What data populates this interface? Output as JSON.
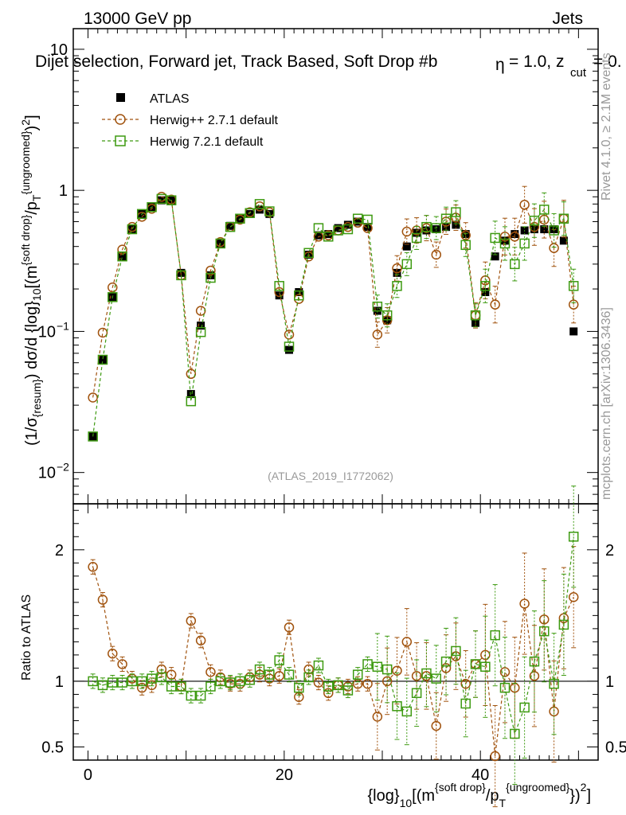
{
  "header": {
    "energy_label": "13000 GeV pp",
    "category_label": "Jets",
    "plot_title": "Dijet selection, Forward jet, Track Based, Soft Drop #b",
    "title_suffix": "= 1.0, z",
    "title_sub": "cut",
    "title_end": "= 0.",
    "beta_symbol": "η",
    "rivet_label": "Rivet 4.1.0, ≥ 2.1M events",
    "mcplots_label": "mcplots.cern.ch [arXiv:1306.3436]",
    "analysis_id": "(ATLAS_2019_I1772062)"
  },
  "axes": {
    "ylabel_main": "(1/σ{resum}) dσ/d {log}10[(msoft drop/pT{ungroomed})2]",
    "ylabel_ratio": "Ratio to ATLAS",
    "xlabel": "{log}10[(msoft drop/pT{ungroomed})2]",
    "main_ticks": [
      "10",
      "1",
      "10",
      "10"
    ],
    "main_tick_exponents": [
      "",
      "",
      "−1",
      "−2"
    ],
    "ratio_ticks": [
      "2",
      "1",
      "0.5"
    ],
    "ratio_ticks_right": [
      "2",
      "1",
      "0.5"
    ],
    "x_ticks": [
      "0",
      "20",
      "40"
    ]
  },
  "legend": {
    "atlas": "ATLAS",
    "herwigpp": "Herwig++ 2.7.1 default",
    "herwig7": "Herwig 7.2.1 default"
  },
  "colors": {
    "atlas": "#000000",
    "herwigpp": "#a0520d",
    "herwig7": "#3d9a10",
    "analysis_text": "#999999",
    "side_text": "#999999"
  },
  "chart_data": {
    "type": "scatter",
    "x": [
      0.5,
      1.5,
      2.5,
      3.5,
      4.5,
      5.5,
      6.5,
      7.5,
      8.5,
      9.5,
      10.5,
      11.5,
      12.5,
      13.5,
      14.5,
      15.5,
      16.5,
      17.5,
      18.5,
      19.5,
      20.5,
      21.5,
      22.5,
      23.5,
      24.5,
      25.5,
      26.5,
      27.5,
      28.5,
      29.5,
      30.5,
      31.5,
      32.5,
      33.5,
      34.5,
      35.5,
      36.5,
      37.5,
      38.5,
      39.5,
      40.5,
      41.5,
      42.5,
      43.5,
      44.5,
      45.5,
      46.5,
      47.5,
      48.5,
      49.5
    ],
    "xlim": [
      -1.5,
      52.0
    ],
    "main": {
      "yscale": "log",
      "ylim": [
        0.006,
        14
      ]
    },
    "ratio": {
      "ylim": [
        0.4,
        2.35
      ]
    },
    "series": [
      {
        "name": "ATLAS",
        "values": [
          0.018,
          0.063,
          0.175,
          0.34,
          0.53,
          0.68,
          0.76,
          0.85,
          0.85,
          0.26,
          0.036,
          0.11,
          0.25,
          0.42,
          0.56,
          0.63,
          0.68,
          0.73,
          0.68,
          0.18,
          0.074,
          0.19,
          0.35,
          0.48,
          0.49,
          0.54,
          0.57,
          0.6,
          0.55,
          0.14,
          0.12,
          0.26,
          0.4,
          0.5,
          0.52,
          0.53,
          0.55,
          0.57,
          0.49,
          0.115,
          0.19,
          0.34,
          0.44,
          0.49,
          0.52,
          0.53,
          0.53,
          0.53,
          0.44,
          0.1
        ]
      },
      {
        "name": "Herwig++ 2.7.1 default",
        "values": [
          0.034,
          0.098,
          0.205,
          0.38,
          0.55,
          0.65,
          0.74,
          0.9,
          0.86,
          0.25,
          0.05,
          0.14,
          0.27,
          0.43,
          0.55,
          0.62,
          0.7,
          0.77,
          0.7,
          0.19,
          0.095,
          0.17,
          0.34,
          0.47,
          0.48,
          0.52,
          0.55,
          0.59,
          0.54,
          0.095,
          0.12,
          0.28,
          0.51,
          0.52,
          0.54,
          0.35,
          0.6,
          0.64,
          0.48,
          0.13,
          0.23,
          0.155,
          0.47,
          0.47,
          0.79,
          0.55,
          0.62,
          0.39,
          0.63,
          0.155
        ],
        "ratio": [
          1.87,
          1.62,
          1.21,
          1.13,
          1.02,
          0.95,
          0.97,
          1.09,
          1.05,
          0.96,
          1.46,
          1.31,
          1.07,
          1.03,
          0.98,
          0.98,
          1.03,
          1.05,
          1.02,
          1.04,
          1.41,
          0.88,
          1.09,
          0.99,
          0.91,
          0.97,
          0.96,
          0.98,
          0.98,
          0.73,
          1.0,
          1.08,
          1.3,
          1.04,
          1.04,
          0.66,
          1.1,
          1.19,
          0.98,
          1.13,
          1.2,
          0.43,
          1.07,
          0.95,
          1.59,
          1.04,
          1.47,
          0.77,
          1.48,
          1.64
        ]
      },
      {
        "name": "Herwig 7.2.1 default",
        "values": [
          0.018,
          0.063,
          0.175,
          0.34,
          0.53,
          0.68,
          0.76,
          0.87,
          0.85,
          0.25,
          0.032,
          0.099,
          0.24,
          0.42,
          0.55,
          0.63,
          0.69,
          0.8,
          0.71,
          0.21,
          0.078,
          0.18,
          0.36,
          0.54,
          0.47,
          0.52,
          0.53,
          0.63,
          0.62,
          0.15,
          0.13,
          0.21,
          0.3,
          0.46,
          0.55,
          0.54,
          0.63,
          0.7,
          0.41,
          0.13,
          0.21,
          0.46,
          0.42,
          0.3,
          0.42,
          0.61,
          0.73,
          0.52,
          0.63,
          0.21
        ],
        "ratio": [
          1.0,
          0.97,
          0.99,
          0.99,
          1.0,
          1.0,
          1.02,
          1.03,
          0.96,
          0.96,
          0.89,
          0.89,
          0.96,
          1.0,
          0.99,
          1.0,
          1.01,
          1.09,
          1.05,
          1.16,
          1.05,
          0.95,
          1.03,
          1.12,
          0.96,
          0.97,
          0.93,
          1.05,
          1.13,
          1.11,
          1.09,
          0.81,
          0.77,
          0.91,
          1.06,
          1.02,
          1.15,
          1.23,
          0.83,
          1.13,
          1.11,
          1.35,
          0.95,
          0.6,
          0.8,
          1.15,
          1.38,
          0.98,
          1.43,
          2.1
        ]
      }
    ]
  }
}
